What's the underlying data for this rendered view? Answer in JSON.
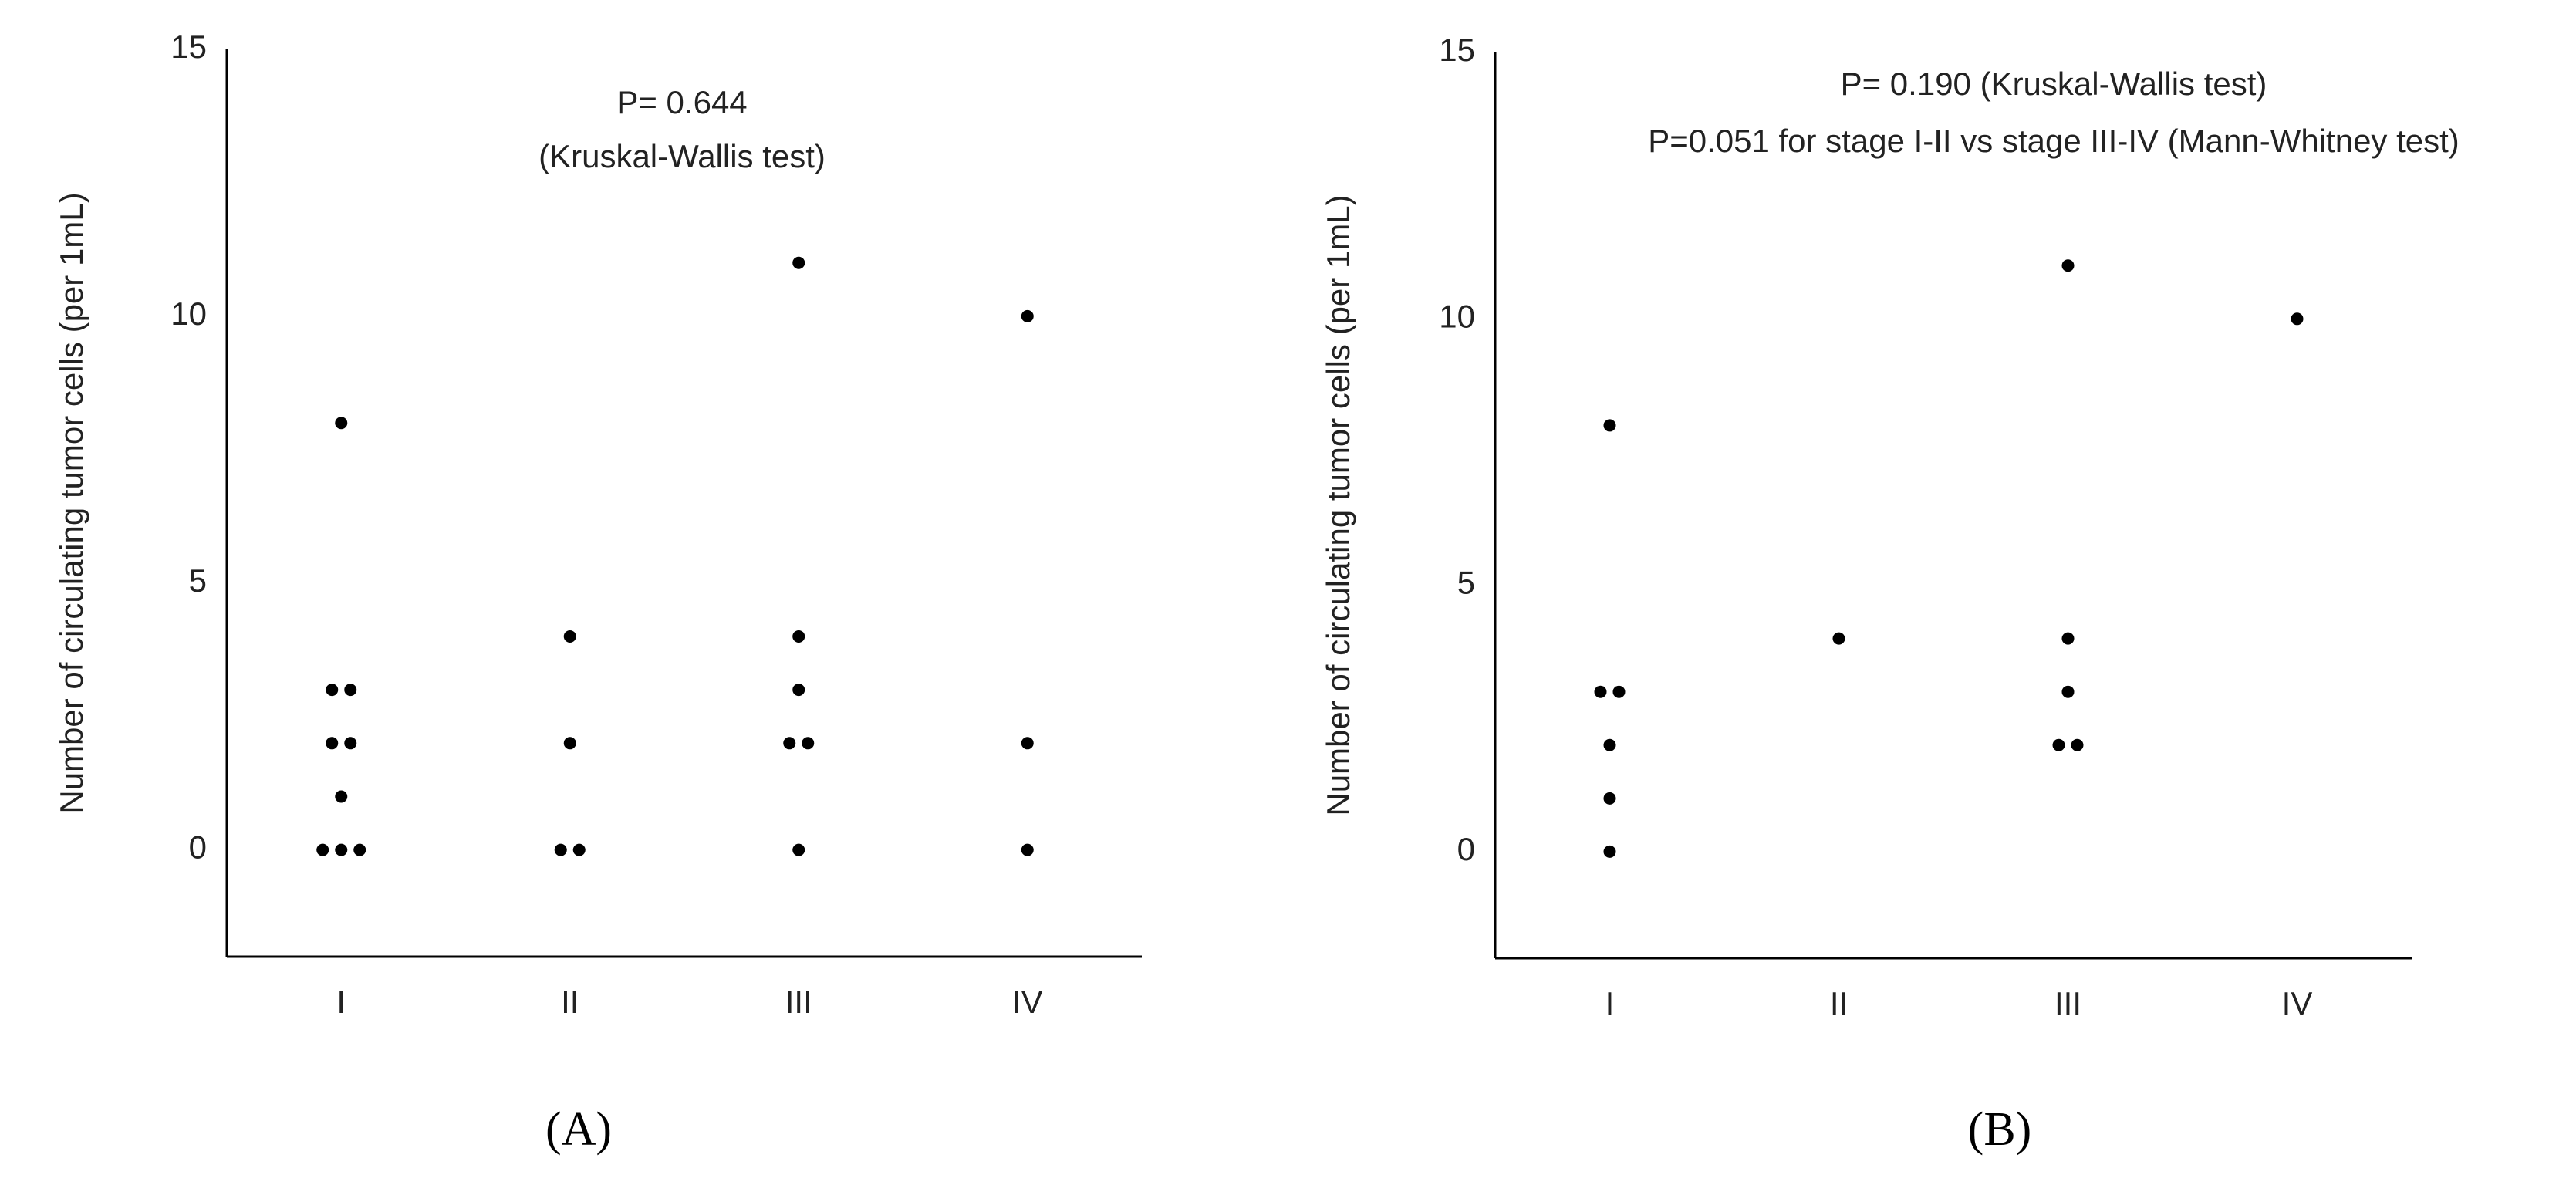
{
  "chart_data": [
    {
      "type": "strip",
      "caption": "(A)",
      "ylabel": "Number of circulating tumor cells (per 1mL)",
      "annotations": [
        "P= 0.644",
        "(Kruskal-Wallis test)"
      ],
      "categories": [
        "I",
        "II",
        "III",
        "IV"
      ],
      "values": [
        [
          0,
          0,
          0,
          1,
          2,
          2,
          3,
          3,
          8
        ],
        [
          0,
          0,
          2,
          4
        ],
        [
          0,
          2,
          2,
          3,
          4,
          11
        ],
        [
          0,
          2,
          10
        ]
      ],
      "color": "#000000",
      "ylim": [
        -2,
        15
      ],
      "yticks": [
        0,
        5,
        10,
        15
      ],
      "grid": false
    },
    {
      "type": "strip",
      "caption": "(B)",
      "ylabel": "Number of circulating tumor cells (per 1mL)",
      "annotations": [
        "P= 0.190 (Kruskal-Wallis test)",
        "P=0.051 for stage I-II vs stage III-IV (Mann-Whitney test)"
      ],
      "categories": [
        "I",
        "II",
        "III",
        "IV"
      ],
      "values": [
        [
          0,
          1,
          2,
          3,
          3,
          8
        ],
        [
          4
        ],
        [
          2,
          2,
          3,
          4,
          11
        ],
        [
          10
        ]
      ],
      "color": "#000000",
      "ylim": [
        -2,
        15
      ],
      "yticks": [
        0,
        5,
        10,
        15
      ],
      "grid": false
    }
  ]
}
